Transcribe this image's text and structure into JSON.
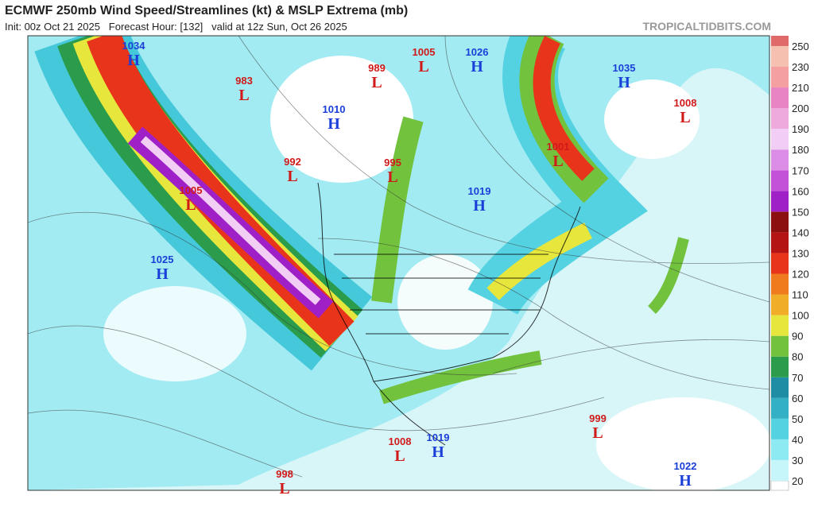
{
  "header": {
    "title": "ECMWF 250mb Wind Speed/Streamlines (kt) & MSLP Extrema (mb)",
    "subtitle": "Init: 00z Oct 21 2025   Forecast Hour: [132]   valid at 12z Sun, Oct 26 2025",
    "watermark": "TROPICALTIDBITS.COM"
  },
  "colorbar": {
    "labels": [
      20,
      30,
      40,
      50,
      60,
      70,
      80,
      90,
      100,
      110,
      120,
      130,
      140,
      150,
      160,
      170,
      180,
      190,
      200,
      210,
      230,
      250
    ],
    "colors": [
      "#c6f6fa",
      "#8eeaf2",
      "#55d2e2",
      "#33b0c4",
      "#1f8ea4",
      "#2a9c4c",
      "#72c23e",
      "#e6e63c",
      "#f0ae28",
      "#f07a1e",
      "#e8341a",
      "#b41414",
      "#8c1010",
      "#a020c8",
      "#c452d8",
      "#dc8ee6",
      "#f2cef4",
      "#eeaadc",
      "#e884c4",
      "#f4a0a0",
      "#f6c0b0",
      "#e06a6a"
    ]
  },
  "pressure_centers": [
    {
      "value": "1034",
      "kind": "H"
    },
    {
      "value": "983",
      "kind": "L"
    },
    {
      "value": "1010",
      "kind": "H"
    },
    {
      "value": "989",
      "kind": "L"
    },
    {
      "value": "1005",
      "kind": "L"
    },
    {
      "value": "1026",
      "kind": "H"
    },
    {
      "value": "1035",
      "kind": "H"
    },
    {
      "value": "1008",
      "kind": "L"
    },
    {
      "value": "992",
      "kind": "L"
    },
    {
      "value": "995",
      "kind": "L"
    },
    {
      "value": "1001",
      "kind": "L"
    },
    {
      "value": "1005",
      "kind": "L"
    },
    {
      "value": "1019",
      "kind": "H"
    },
    {
      "value": "1025",
      "kind": "H"
    },
    {
      "value": "999",
      "kind": "L"
    },
    {
      "value": "1008",
      "kind": "L"
    },
    {
      "value": "1019",
      "kind": "H"
    },
    {
      "value": "998",
      "kind": "L"
    },
    {
      "value": "1022",
      "kind": "H"
    }
  ]
}
